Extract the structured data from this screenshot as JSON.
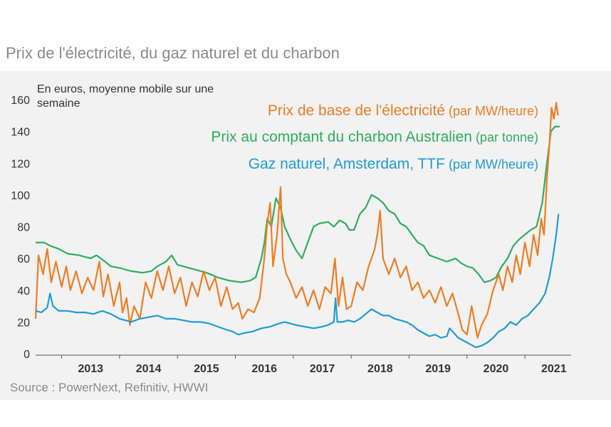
{
  "title": "Prix de l'électricité, du gaz naturel et du charbon",
  "source": "Source : PowerNext, Refinitiv, HWWI",
  "chart_data": {
    "type": "line",
    "unit_note": [
      "En euros, moyenne mobile sur une",
      "semaine"
    ],
    "ylim": [
      0,
      160
    ],
    "y_ticks": [
      0,
      20,
      40,
      60,
      80,
      100,
      120,
      140,
      160
    ],
    "xlim": [
      2012.55,
      2021.65
    ],
    "x_ticks": [
      2013,
      2014,
      2015,
      2016,
      2017,
      2018,
      2019,
      2020,
      2021
    ],
    "grid": false,
    "legend": "top-right",
    "series": [
      {
        "name": "Prix de base de l'électricité",
        "name_suffix": " (par MW/heure)",
        "color": "#ee7d23",
        "points": [
          [
            2012.55,
            22
          ],
          [
            2012.6,
            62
          ],
          [
            2012.68,
            50
          ],
          [
            2012.75,
            66
          ],
          [
            2012.82,
            45
          ],
          [
            2012.9,
            58
          ],
          [
            2013.0,
            42
          ],
          [
            2013.08,
            55
          ],
          [
            2013.15,
            40
          ],
          [
            2013.25,
            52
          ],
          [
            2013.35,
            38
          ],
          [
            2013.45,
            48
          ],
          [
            2013.55,
            40
          ],
          [
            2013.65,
            58
          ],
          [
            2013.72,
            36
          ],
          [
            2013.8,
            50
          ],
          [
            2013.9,
            30
          ],
          [
            2014.0,
            45
          ],
          [
            2014.05,
            26
          ],
          [
            2014.12,
            35
          ],
          [
            2014.18,
            18
          ],
          [
            2014.25,
            30
          ],
          [
            2014.35,
            22
          ],
          [
            2014.45,
            45
          ],
          [
            2014.55,
            35
          ],
          [
            2014.65,
            52
          ],
          [
            2014.75,
            40
          ],
          [
            2014.85,
            55
          ],
          [
            2014.95,
            38
          ],
          [
            2015.05,
            48
          ],
          [
            2015.15,
            30
          ],
          [
            2015.25,
            45
          ],
          [
            2015.35,
            36
          ],
          [
            2015.45,
            52
          ],
          [
            2015.55,
            40
          ],
          [
            2015.65,
            48
          ],
          [
            2015.75,
            30
          ],
          [
            2015.85,
            42
          ],
          [
            2015.95,
            28
          ],
          [
            2016.05,
            32
          ],
          [
            2016.12,
            22
          ],
          [
            2016.22,
            28
          ],
          [
            2016.32,
            26
          ],
          [
            2016.42,
            35
          ],
          [
            2016.5,
            60
          ],
          [
            2016.55,
            82
          ],
          [
            2016.6,
            95
          ],
          [
            2016.65,
            55
          ],
          [
            2016.72,
            75
          ],
          [
            2016.78,
            105
          ],
          [
            2016.82,
            60
          ],
          [
            2016.88,
            50
          ],
          [
            2016.95,
            45
          ],
          [
            2017.05,
            35
          ],
          [
            2017.15,
            42
          ],
          [
            2017.25,
            30
          ],
          [
            2017.35,
            40
          ],
          [
            2017.45,
            28
          ],
          [
            2017.55,
            42
          ],
          [
            2017.65,
            38
          ],
          [
            2017.72,
            60
          ],
          [
            2017.78,
            30
          ],
          [
            2017.85,
            48
          ],
          [
            2017.92,
            28
          ],
          [
            2018.0,
            30
          ],
          [
            2018.1,
            45
          ],
          [
            2018.2,
            40
          ],
          [
            2018.3,
            55
          ],
          [
            2018.4,
            65
          ],
          [
            2018.45,
            75
          ],
          [
            2018.5,
            90
          ],
          [
            2018.55,
            60
          ],
          [
            2018.65,
            50
          ],
          [
            2018.75,
            60
          ],
          [
            2018.85,
            48
          ],
          [
            2018.95,
            55
          ],
          [
            2019.05,
            40
          ],
          [
            2019.15,
            45
          ],
          [
            2019.25,
            35
          ],
          [
            2019.35,
            40
          ],
          [
            2019.45,
            32
          ],
          [
            2019.55,
            42
          ],
          [
            2019.65,
            30
          ],
          [
            2019.75,
            38
          ],
          [
            2019.85,
            25
          ],
          [
            2019.92,
            15
          ],
          [
            2020.0,
            12
          ],
          [
            2020.08,
            30
          ],
          [
            2020.12,
            22
          ],
          [
            2020.18,
            10
          ],
          [
            2020.25,
            18
          ],
          [
            2020.35,
            25
          ],
          [
            2020.45,
            40
          ],
          [
            2020.55,
            50
          ],
          [
            2020.62,
            40
          ],
          [
            2020.7,
            55
          ],
          [
            2020.78,
            45
          ],
          [
            2020.85,
            62
          ],
          [
            2020.92,
            50
          ],
          [
            2021.0,
            70
          ],
          [
            2021.08,
            55
          ],
          [
            2021.15,
            75
          ],
          [
            2021.22,
            62
          ],
          [
            2021.28,
            85
          ],
          [
            2021.33,
            75
          ],
          [
            2021.38,
            110
          ],
          [
            2021.42,
            130
          ],
          [
            2021.46,
            155
          ],
          [
            2021.5,
            148
          ],
          [
            2021.54,
            158
          ],
          [
            2021.57,
            150
          ]
        ]
      },
      {
        "name": "Prix au comptant du charbon Australien",
        "name_suffix": " (par tonne)",
        "color": "#2fae5e",
        "points": [
          [
            2012.55,
            70
          ],
          [
            2012.7,
            70
          ],
          [
            2012.8,
            68
          ],
          [
            2012.95,
            66
          ],
          [
            2013.1,
            63
          ],
          [
            2013.3,
            62
          ],
          [
            2013.5,
            60
          ],
          [
            2013.6,
            62
          ],
          [
            2013.75,
            58
          ],
          [
            2013.85,
            55
          ],
          [
            2014.0,
            54
          ],
          [
            2014.2,
            52
          ],
          [
            2014.4,
            51
          ],
          [
            2014.55,
            52
          ],
          [
            2014.65,
            55
          ],
          [
            2014.8,
            58
          ],
          [
            2014.9,
            62
          ],
          [
            2015.0,
            56
          ],
          [
            2015.1,
            55
          ],
          [
            2015.3,
            53
          ],
          [
            2015.5,
            51
          ],
          [
            2015.7,
            48
          ],
          [
            2015.9,
            46
          ],
          [
            2016.1,
            45
          ],
          [
            2016.25,
            46
          ],
          [
            2016.35,
            48
          ],
          [
            2016.45,
            60
          ],
          [
            2016.5,
            70
          ],
          [
            2016.55,
            85
          ],
          [
            2016.62,
            80
          ],
          [
            2016.7,
            98
          ],
          [
            2016.78,
            92
          ],
          [
            2016.85,
            80
          ],
          [
            2016.95,
            72
          ],
          [
            2017.05,
            65
          ],
          [
            2017.15,
            60
          ],
          [
            2017.25,
            70
          ],
          [
            2017.35,
            80
          ],
          [
            2017.45,
            82
          ],
          [
            2017.6,
            83
          ],
          [
            2017.7,
            80
          ],
          [
            2017.8,
            84
          ],
          [
            2017.9,
            82
          ],
          [
            2017.97,
            78
          ],
          [
            2018.05,
            78
          ],
          [
            2018.15,
            88
          ],
          [
            2018.25,
            92
          ],
          [
            2018.35,
            100
          ],
          [
            2018.45,
            98
          ],
          [
            2018.55,
            95
          ],
          [
            2018.65,
            90
          ],
          [
            2018.75,
            88
          ],
          [
            2018.85,
            82
          ],
          [
            2018.95,
            80
          ],
          [
            2019.05,
            75
          ],
          [
            2019.15,
            70
          ],
          [
            2019.25,
            68
          ],
          [
            2019.35,
            62
          ],
          [
            2019.5,
            60
          ],
          [
            2019.65,
            58
          ],
          [
            2019.8,
            60
          ],
          [
            2019.9,
            57
          ],
          [
            2020.0,
            55
          ],
          [
            2020.1,
            54
          ],
          [
            2020.2,
            50
          ],
          [
            2020.3,
            45
          ],
          [
            2020.4,
            46
          ],
          [
            2020.5,
            48
          ],
          [
            2020.6,
            55
          ],
          [
            2020.7,
            60
          ],
          [
            2020.8,
            68
          ],
          [
            2020.9,
            72
          ],
          [
            2021.0,
            75
          ],
          [
            2021.1,
            78
          ],
          [
            2021.2,
            80
          ],
          [
            2021.3,
            95
          ],
          [
            2021.38,
            120
          ],
          [
            2021.45,
            140
          ],
          [
            2021.52,
            143
          ],
          [
            2021.6,
            143
          ]
        ]
      },
      {
        "name": "Gaz naturel, Amsterdam, TTF",
        "name_suffix": " (par MW/heure)",
        "color": "#1f9bd6",
        "points": [
          [
            2012.55,
            27
          ],
          [
            2012.65,
            26
          ],
          [
            2012.75,
            29
          ],
          [
            2012.8,
            38
          ],
          [
            2012.85,
            30
          ],
          [
            2012.95,
            27
          ],
          [
            2013.1,
            27
          ],
          [
            2013.25,
            26
          ],
          [
            2013.4,
            26
          ],
          [
            2013.55,
            25
          ],
          [
            2013.7,
            27
          ],
          [
            2013.85,
            25
          ],
          [
            2014.0,
            22
          ],
          [
            2014.1,
            21
          ],
          [
            2014.2,
            20
          ],
          [
            2014.35,
            22
          ],
          [
            2014.5,
            23
          ],
          [
            2014.65,
            24
          ],
          [
            2014.8,
            22
          ],
          [
            2014.95,
            22
          ],
          [
            2015.1,
            21
          ],
          [
            2015.25,
            20
          ],
          [
            2015.4,
            20
          ],
          [
            2015.55,
            19
          ],
          [
            2015.7,
            17
          ],
          [
            2015.85,
            15
          ],
          [
            2015.95,
            14
          ],
          [
            2016.05,
            12
          ],
          [
            2016.15,
            13
          ],
          [
            2016.3,
            14
          ],
          [
            2016.45,
            16
          ],
          [
            2016.6,
            17
          ],
          [
            2016.75,
            19
          ],
          [
            2016.85,
            20
          ],
          [
            2016.95,
            19
          ],
          [
            2017.05,
            18
          ],
          [
            2017.2,
            17
          ],
          [
            2017.35,
            16
          ],
          [
            2017.5,
            17
          ],
          [
            2017.6,
            18
          ],
          [
            2017.7,
            20
          ],
          [
            2017.73,
            35
          ],
          [
            2017.76,
            20
          ],
          [
            2017.85,
            20
          ],
          [
            2017.95,
            21
          ],
          [
            2018.05,
            20
          ],
          [
            2018.15,
            22
          ],
          [
            2018.25,
            25
          ],
          [
            2018.35,
            28
          ],
          [
            2018.45,
            26
          ],
          [
            2018.55,
            24
          ],
          [
            2018.65,
            24
          ],
          [
            2018.75,
            22
          ],
          [
            2018.85,
            21
          ],
          [
            2018.95,
            20
          ],
          [
            2019.05,
            18
          ],
          [
            2019.15,
            15
          ],
          [
            2019.25,
            13
          ],
          [
            2019.35,
            11
          ],
          [
            2019.45,
            12
          ],
          [
            2019.55,
            10
          ],
          [
            2019.65,
            11
          ],
          [
            2019.7,
            16
          ],
          [
            2019.75,
            14
          ],
          [
            2019.85,
            10
          ],
          [
            2019.95,
            8
          ],
          [
            2020.05,
            6
          ],
          [
            2020.15,
            4
          ],
          [
            2020.25,
            5
          ],
          [
            2020.35,
            7
          ],
          [
            2020.45,
            10
          ],
          [
            2020.55,
            14
          ],
          [
            2020.65,
            16
          ],
          [
            2020.75,
            20
          ],
          [
            2020.85,
            18
          ],
          [
            2020.95,
            22
          ],
          [
            2021.05,
            24
          ],
          [
            2021.15,
            28
          ],
          [
            2021.25,
            32
          ],
          [
            2021.35,
            38
          ],
          [
            2021.42,
            48
          ],
          [
            2021.48,
            60
          ],
          [
            2021.54,
            75
          ],
          [
            2021.58,
            88
          ]
        ]
      }
    ]
  }
}
